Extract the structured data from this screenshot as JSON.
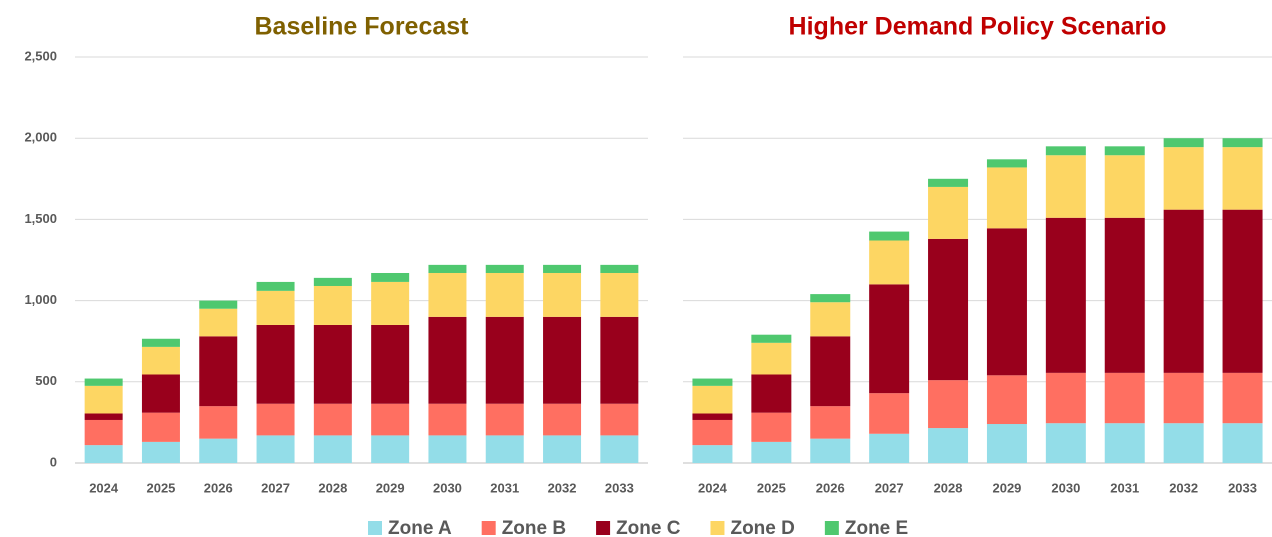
{
  "chart_data": [
    {
      "type": "bar",
      "stacked": true,
      "title": "Baseline Forecast",
      "title_color": "#7f6000",
      "categories": [
        "2024",
        "2025",
        "2026",
        "2027",
        "2028",
        "2029",
        "2030",
        "2031",
        "2032",
        "2033"
      ],
      "ylim": [
        0,
        2500
      ],
      "yticks": [
        0,
        500,
        {
          "value": 1000,
          "label": "1,000"
        },
        {
          "value": 1500,
          "label": "1,500"
        },
        {
          "value": 2000,
          "label": "2,000"
        },
        {
          "value": 2500,
          "label": "2,500"
        }
      ],
      "grid": true,
      "series": [
        {
          "name": "Zone A",
          "color": "#93dde8",
          "values": [
            110,
            130,
            150,
            170,
            170,
            170,
            170,
            170,
            170,
            170
          ]
        },
        {
          "name": "Zone B",
          "color": "#ff6f61",
          "values": [
            155,
            180,
            200,
            195,
            195,
            195,
            195,
            195,
            195,
            195
          ]
        },
        {
          "name": "Zone C",
          "color": "#99001c",
          "values": [
            40,
            235,
            430,
            485,
            485,
            485,
            535,
            535,
            535,
            535
          ]
        },
        {
          "name": "Zone D",
          "color": "#fdd663",
          "values": [
            170,
            170,
            170,
            210,
            240,
            265,
            270,
            270,
            270,
            270
          ]
        },
        {
          "name": "Zone E",
          "color": "#4fc86f",
          "values": [
            45,
            50,
            50,
            55,
            50,
            55,
            50,
            50,
            50,
            50
          ]
        }
      ]
    },
    {
      "type": "bar",
      "stacked": true,
      "title": "Higher Demand Policy Scenario",
      "title_color": "#c00000",
      "categories": [
        "2024",
        "2025",
        "2026",
        "2027",
        "2028",
        "2029",
        "2030",
        "2031",
        "2032",
        "2033"
      ],
      "ylim": [
        0,
        2500
      ],
      "yticks": [
        0,
        500,
        1000,
        1500,
        2000,
        2500
      ],
      "grid": true,
      "series": [
        {
          "name": "Zone A",
          "color": "#93dde8",
          "values": [
            110,
            130,
            150,
            180,
            215,
            240,
            245,
            245,
            245,
            245
          ]
        },
        {
          "name": "Zone B",
          "color": "#ff6f61",
          "values": [
            155,
            180,
            200,
            250,
            295,
            300,
            310,
            310,
            310,
            310
          ]
        },
        {
          "name": "Zone C",
          "color": "#99001c",
          "values": [
            40,
            235,
            430,
            670,
            870,
            905,
            955,
            955,
            1005,
            1005
          ]
        },
        {
          "name": "Zone D",
          "color": "#fdd663",
          "values": [
            170,
            195,
            210,
            270,
            320,
            375,
            385,
            385,
            385,
            385
          ]
        },
        {
          "name": "Zone E",
          "color": "#4fc86f",
          "values": [
            45,
            50,
            50,
            55,
            50,
            50,
            55,
            55,
            55,
            55
          ]
        }
      ]
    }
  ]
}
